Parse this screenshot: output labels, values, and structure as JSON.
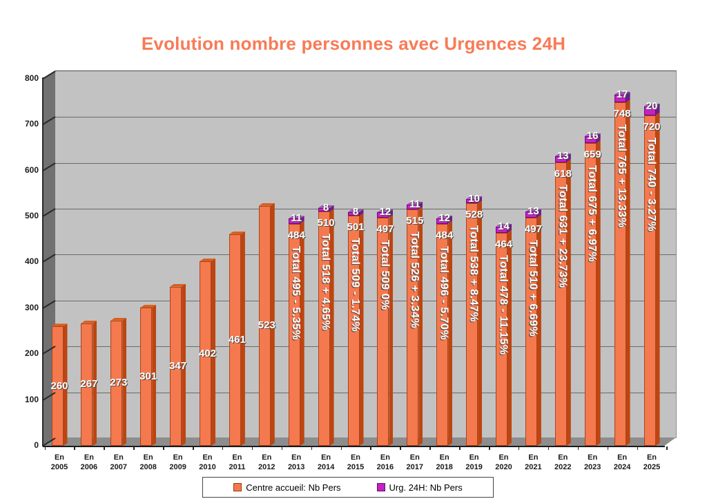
{
  "title": "Evolution nombre personnes avec Urgences 24H",
  "title_color": "#F97A55",
  "chart_data": {
    "type": "bar",
    "stacked": true,
    "grid": "horizontal",
    "legend_position": "bottom",
    "ylim": [
      0,
      800
    ],
    "ytick_interval": 100,
    "categories": [
      "En 2005",
      "En 2006",
      "En 2007",
      "En 2008",
      "En 2009",
      "En 2010",
      "En 2011",
      "En 2012",
      "En 2013",
      "En 2014",
      "En 2015",
      "En 2016",
      "En 2017",
      "En 2018",
      "En 2019",
      "En 2020",
      "En 2021",
      "En 2022",
      "En 2023",
      "En 2024",
      "En 2025"
    ],
    "series": [
      {
        "name": "Centre accueil: Nb Pers",
        "color": "#F5794E",
        "side_color": "#BD4511",
        "top_color": "#D95F1D",
        "swatch_border": "#993A0D",
        "values": [
          260,
          267,
          273,
          301,
          347,
          402,
          461,
          523,
          484,
          510,
          501,
          497,
          515,
          484,
          528,
          464,
          497,
          618,
          659,
          748,
          720
        ]
      },
      {
        "name": "Urg. 24H: Nb Pers",
        "color": "#C521C5",
        "side_color": "#6B1E8A",
        "top_color": "#A158B8",
        "swatch_border": "#5E0F70",
        "values": [
          0,
          0,
          0,
          0,
          0,
          0,
          0,
          0,
          11,
          8,
          8,
          12,
          11,
          12,
          10,
          14,
          13,
          13,
          16,
          17,
          20
        ]
      }
    ],
    "total_labels": [
      "",
      "",
      "",
      "",
      "",
      "",
      "",
      "",
      "Total 495 - 5.35%",
      "Total 518 + 4.65%",
      "Total 509 - 1.74%",
      "Total 509 0%",
      "Total 526 + 3.34%",
      "Total 496 - 5.70%",
      "Total 538 + 8.47%",
      "Total 478 - 11.15%",
      "Total 510 + 6.69%",
      "Total 631 + 23.73%",
      "Total 675 + 6.97%",
      "Total 765 + 13.33%",
      "Total 740 - 3.27%"
    ]
  }
}
